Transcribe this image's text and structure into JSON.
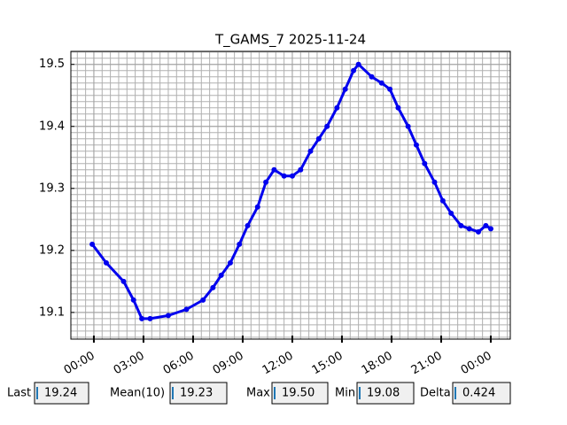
{
  "chart_data": {
    "type": "line",
    "title": "T_GAMS_7 2025-11-24",
    "x": [
      -0.1,
      0.75,
      1.8,
      2.4,
      2.9,
      3.4,
      4.5,
      5.6,
      6.6,
      7.2,
      7.7,
      8.25,
      8.8,
      9.3,
      9.9,
      10.4,
      10.9,
      11.5,
      12.0,
      12.5,
      13.1,
      13.6,
      14.1,
      14.7,
      15.2,
      15.7,
      16.0,
      16.8,
      17.4,
      17.9,
      18.4,
      19.0,
      19.5,
      20.0,
      20.6,
      21.1,
      21.6,
      22.2,
      22.7,
      23.25,
      23.7,
      24.0
    ],
    "series": [
      {
        "color": "#0000ee",
        "values": [
          19.21,
          19.18,
          19.15,
          19.12,
          19.09,
          19.09,
          19.095,
          19.105,
          19.12,
          19.14,
          19.16,
          19.18,
          19.21,
          19.24,
          19.27,
          19.31,
          19.33,
          19.32,
          19.32,
          19.33,
          19.36,
          19.38,
          19.4,
          19.43,
          19.46,
          19.49,
          19.5,
          19.48,
          19.47,
          19.46,
          19.43,
          19.4,
          19.37,
          19.34,
          19.31,
          19.28,
          19.26,
          19.24,
          19.235,
          19.23,
          19.24,
          19.235
        ]
      }
    ],
    "xlim": [
      -1.39,
      25.18
    ],
    "xticks": [
      {
        "value": 0,
        "label": "00:00"
      },
      {
        "value": 3,
        "label": "03:00"
      },
      {
        "value": 6,
        "label": "06:00"
      },
      {
        "value": 9,
        "label": "09:00"
      },
      {
        "value": 12,
        "label": "12:00"
      },
      {
        "value": 15,
        "label": "15:00"
      },
      {
        "value": 18,
        "label": "18:00"
      },
      {
        "value": 21,
        "label": "21:00"
      },
      {
        "value": 24,
        "label": "00:00"
      }
    ],
    "ylim": [
      19.057,
      19.521
    ],
    "yticks": [
      19.1,
      19.2,
      19.3,
      19.4,
      19.5
    ],
    "grid": true
  },
  "readouts": [
    {
      "label": "Last",
      "value": "19.24"
    },
    {
      "label": "Mean(10)",
      "value": "19.23"
    },
    {
      "label": "Max",
      "value": "19.50"
    },
    {
      "label": "Min",
      "value": "19.08"
    },
    {
      "label": "Delta",
      "value": "0.424"
    }
  ]
}
